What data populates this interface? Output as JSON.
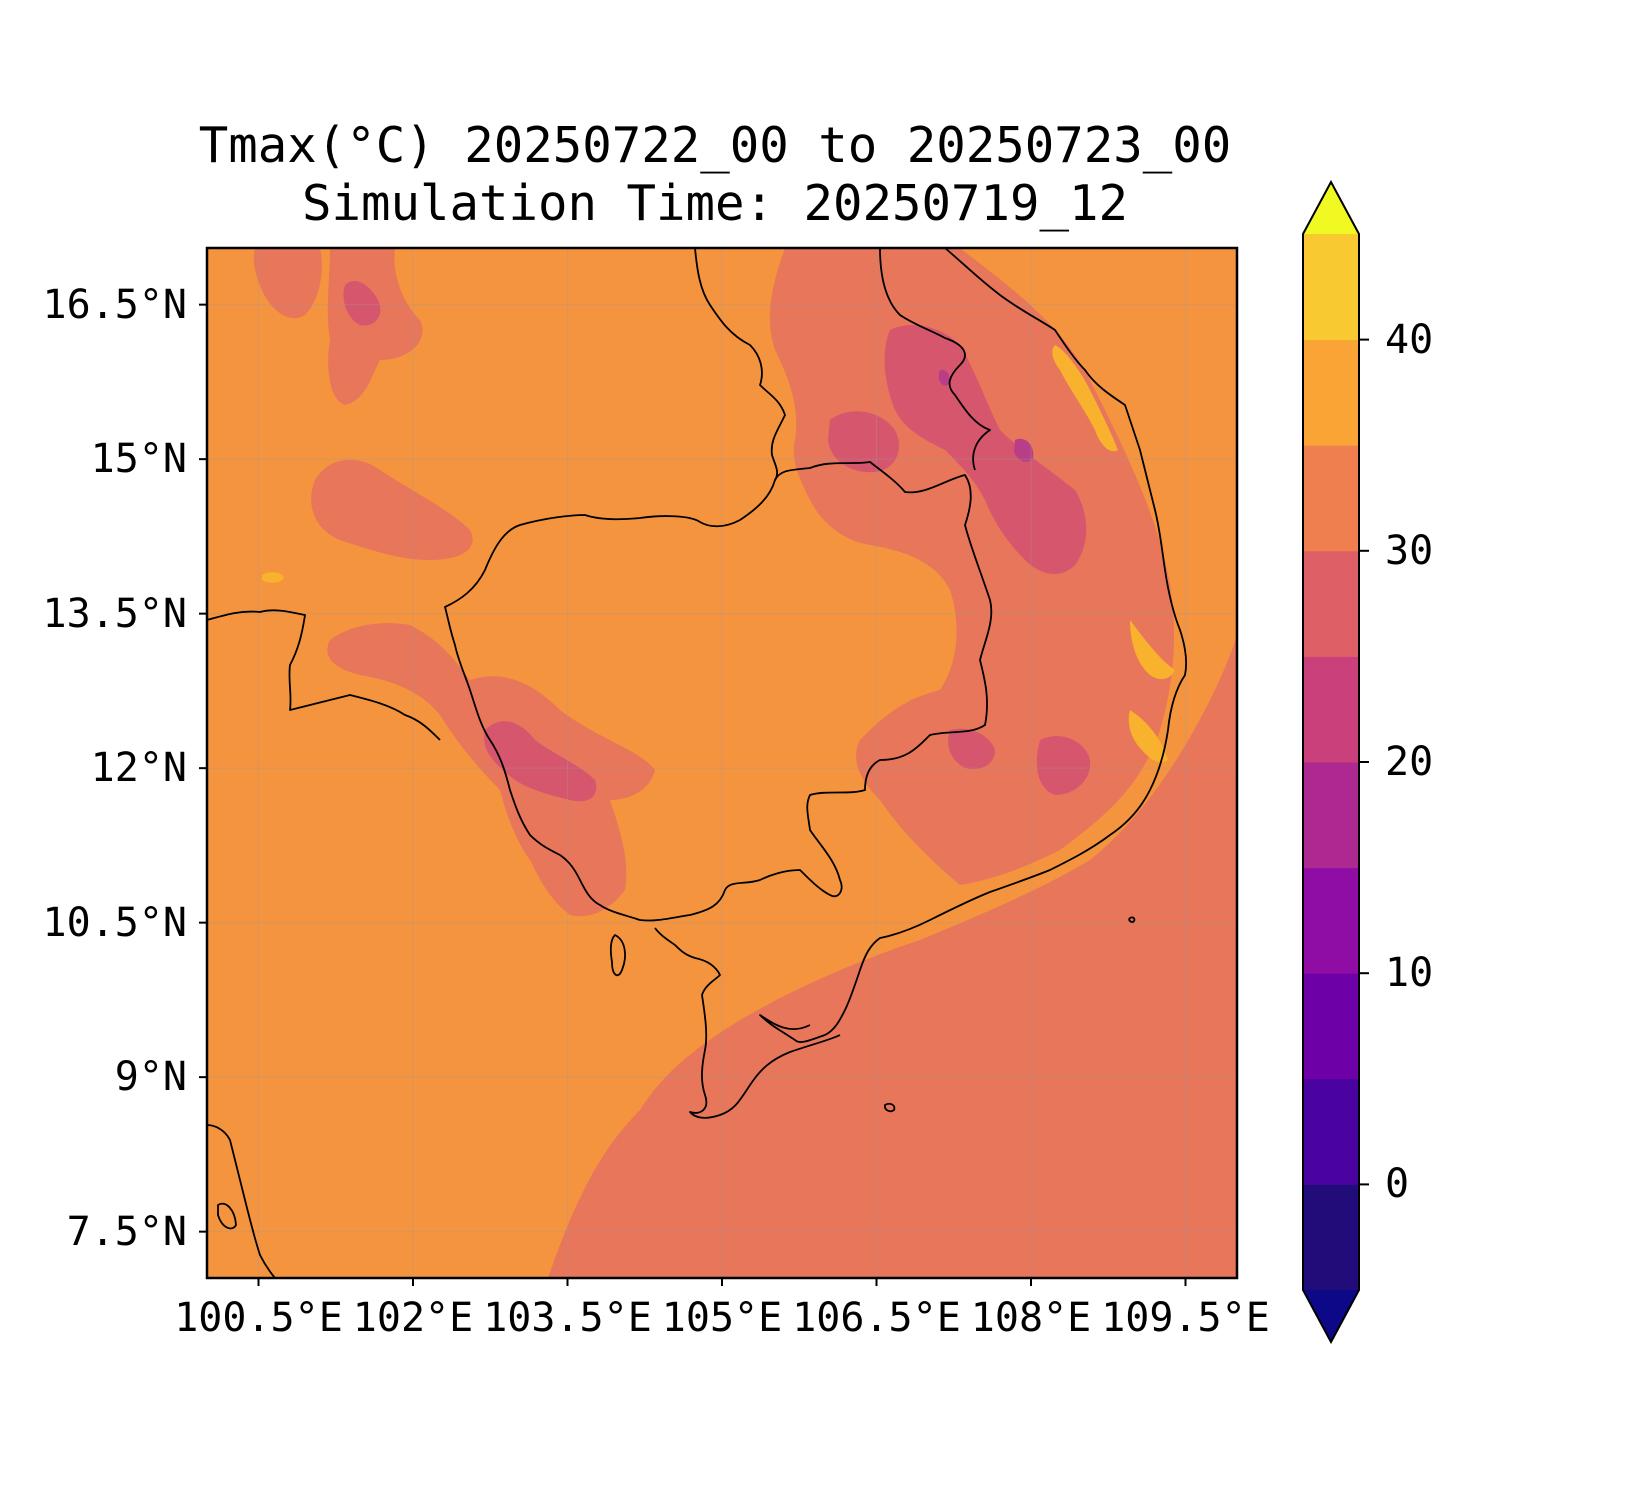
{
  "map": {
    "title_line1": "Tmax(°C) 20250722_00 to 20250723_00",
    "title_line2": "Simulation Time: 20250719_12",
    "lat_ticks": [
      {
        "value": 16.5,
        "label": "16.5°N"
      },
      {
        "value": 15,
        "label": "15°N"
      },
      {
        "value": 13.5,
        "label": "13.5°N"
      },
      {
        "value": 12,
        "label": "12°N"
      },
      {
        "value": 10.5,
        "label": "10.5°N"
      },
      {
        "value": 9,
        "label": "9°N"
      },
      {
        "value": 7.5,
        "label": "7.5°N"
      }
    ],
    "lon_ticks": [
      {
        "value": 100.5,
        "label": "100.5°E"
      },
      {
        "value": 102,
        "label": "102°E"
      },
      {
        "value": 103.5,
        "label": "103.5°E"
      },
      {
        "value": 105,
        "label": "105°E"
      },
      {
        "value": 106.5,
        "label": "106.5°E"
      },
      {
        "value": 108,
        "label": "108°E"
      },
      {
        "value": 109.5,
        "label": "109.5°E"
      }
    ],
    "lon_range": [
      100.0,
      110.0
    ],
    "lat_range": [
      7.05,
      17.05
    ],
    "gridlines": true,
    "colorbar": {
      "placement": "right",
      "extend": "both",
      "levels": [
        -5,
        0,
        5,
        10,
        15,
        20,
        25,
        30,
        35,
        40,
        45
      ],
      "tick_labels": [
        {
          "value": 0,
          "label": "0"
        },
        {
          "value": 10,
          "label": "10"
        },
        {
          "value": 20,
          "label": "20"
        },
        {
          "value": 30,
          "label": "30"
        },
        {
          "value": 40,
          "label": "40"
        }
      ],
      "colors": [
        "#220c7a",
        "#4a02a0",
        "#6e00a8",
        "#8f0da4",
        "#ae2891",
        "#c9407a",
        "#de5f65",
        "#ef7f4f",
        "#f9a435",
        "#f9c932",
        "#f0f921"
      ],
      "under_color": "#0d0887",
      "over_color": "#f0f921"
    },
    "field_colors": {
      "band_25_30": "#e8765a",
      "band_30_35": "#f5943f",
      "band_20_25": "#d6566e",
      "band_15_20": "#b83f87",
      "band_35_40": "#f9b22d"
    }
  }
}
